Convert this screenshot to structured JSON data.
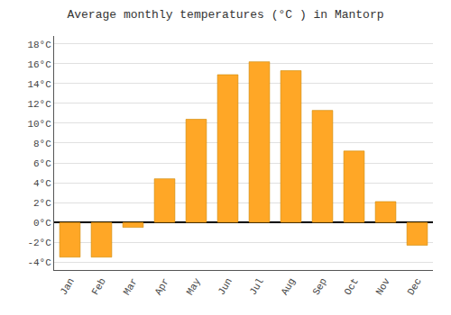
{
  "chart_data": {
    "type": "bar",
    "title": "Average monthly temperatures (°C ) in Mantorp",
    "categories": [
      "Jan",
      "Feb",
      "Mar",
      "Apr",
      "May",
      "Jun",
      "Jul",
      "Aug",
      "Sep",
      "Oct",
      "Nov",
      "Dec"
    ],
    "values": [
      -3.5,
      -3.5,
      -0.5,
      4.4,
      10.4,
      14.9,
      16.2,
      15.3,
      11.3,
      7.2,
      2.1,
      -2.3
    ],
    "color": "#FFA726",
    "ylim": [
      -4.8,
      18.8
    ],
    "yticks": [
      {
        "value": -4,
        "label": "-4°C"
      },
      {
        "value": -2,
        "label": "-2°C"
      },
      {
        "value": 0,
        "label": "0°C"
      },
      {
        "value": 2,
        "label": "2°C"
      },
      {
        "value": 4,
        "label": "4°C"
      },
      {
        "value": 6,
        "label": "6°C"
      },
      {
        "value": 8,
        "label": "8°C"
      },
      {
        "value": 10,
        "label": "10°C"
      },
      {
        "value": 12,
        "label": "12°C"
      },
      {
        "value": 14,
        "label": "14°C"
      },
      {
        "value": 16,
        "label": "16°C"
      },
      {
        "value": 18,
        "label": "18°C"
      }
    ],
    "grid": true
  }
}
